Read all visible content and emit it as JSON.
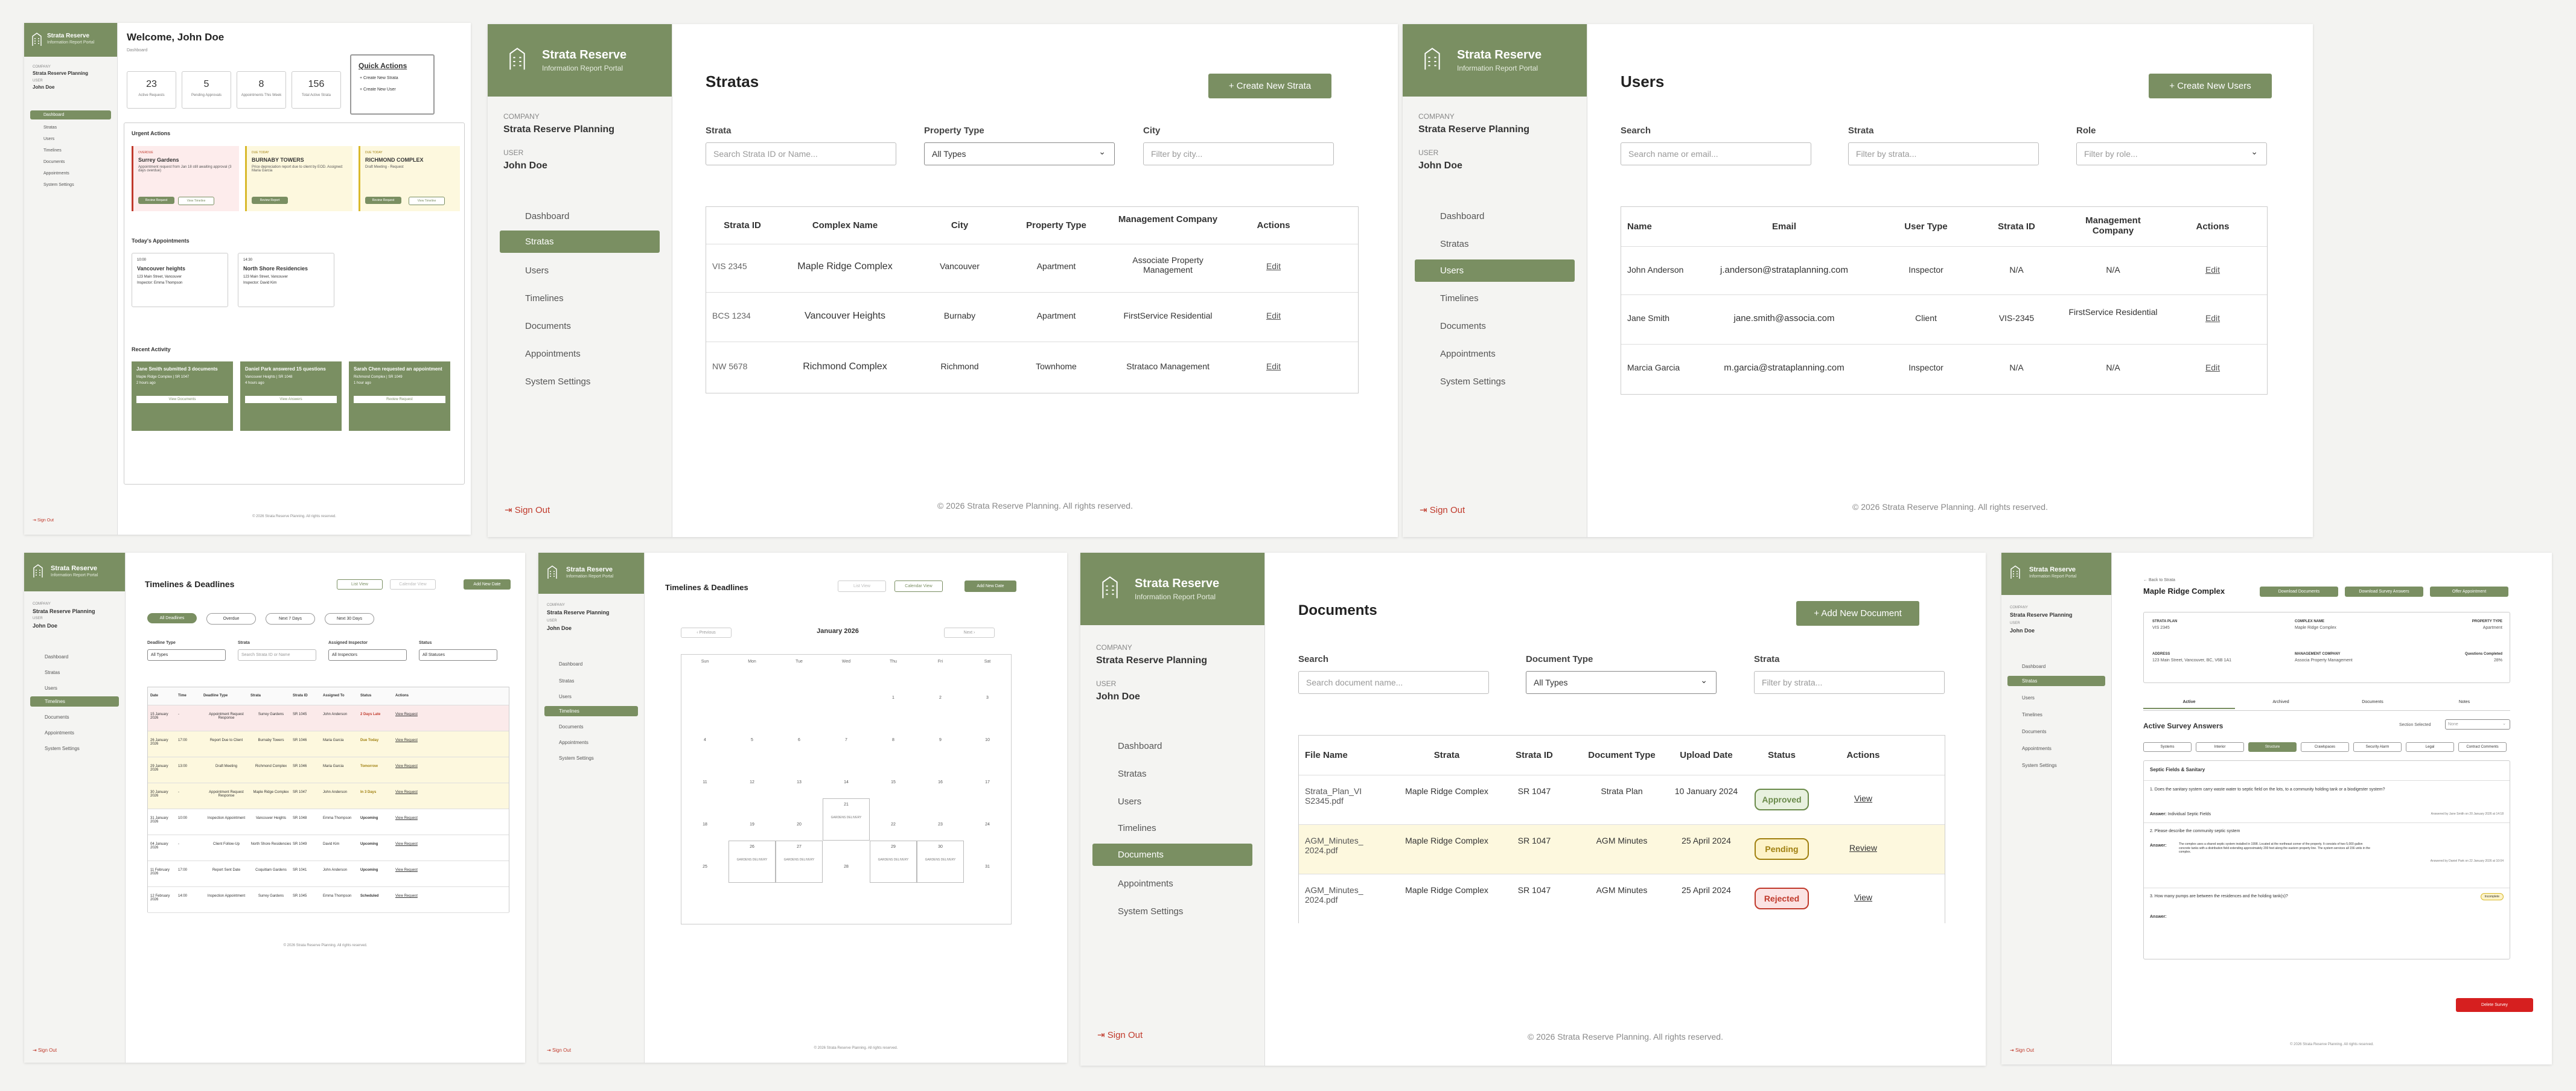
{
  "brand": {
    "name": "Strata Reserve",
    "subtitle": "Information Report Portal"
  },
  "company_label": "COMPANY",
  "company": "Strata Reserve Planning",
  "user_label": "USER",
  "user": "John Doe",
  "nav": [
    "Dashboard",
    "Stratas",
    "Users",
    "Timelines",
    "Documents",
    "Appointments",
    "System Settings"
  ],
  "signout": "Sign Out",
  "footer": "© 2026 Strata Reserve Planning. All rights reserved.",
  "dash": {
    "title": "Welcome, John Doe",
    "crumb": "Dashboard",
    "stats": [
      {
        "n": "23",
        "l": "Active Requests"
      },
      {
        "n": "5",
        "l": "Pending Approvals"
      },
      {
        "n": "8",
        "l": "Appointments This Week"
      },
      {
        "n": "156",
        "l": "Total Active Strata"
      }
    ],
    "qa_title": "Quick Actions",
    "qa": [
      "+ Create New Strata",
      "+ Create New User"
    ],
    "urgent_title": "Urgent Actions",
    "urgent": [
      {
        "tag": "OVERDUE",
        "name": "Surrey Gardens",
        "desc": "Appointment request from Jan 18 still awaiting approval (3 days overdue)",
        "b1": "Review Request",
        "b2": "View Timeline"
      },
      {
        "tag": "DUE TODAY",
        "name": "BURNABY TOWERS",
        "desc": "Price depreciation report due to client by EOD. Assigned: Maria Garcia",
        "b1": "Review Report",
        "b2": "View Timeline"
      },
      {
        "tag": "DUE TODAY",
        "name": "RICHMOND COMPLEX",
        "desc": "Draft Meeting - Request",
        "b1": "Review Request",
        "b2": "View Timeline"
      }
    ],
    "appt_title": "Today's Appointments",
    "appts": [
      {
        "time": "10:00",
        "name": "Vancouver heights",
        "addr": "123 Main Street, Vancouver",
        "insp": "Inspector: Emma Thompson"
      },
      {
        "time": "14:30",
        "name": "North Shore Residencies",
        "addr": "123 Main Street, Vancouver",
        "insp": "Inspector: David Kim"
      }
    ],
    "act_title": "Recent Activity",
    "acts": [
      {
        "t": "Jane Smith submitted 3 documents",
        "s": "Maple Ridge Complex | SR 1047",
        "ago": "2 hours ago",
        "b": "View Documents"
      },
      {
        "t": "Daniel Park answered 15 questions",
        "s": "Vancouver Heights | SR 1048",
        "ago": "4 hours ago",
        "b": "View Answers"
      },
      {
        "t": "Sarah Chen requested an appointment",
        "s": "Richmond Complex | SR 1049",
        "ago": "1 hour ago",
        "b": "Review Request"
      }
    ]
  },
  "stratas": {
    "title": "Stratas",
    "create": "+ Create New Strata",
    "f": [
      {
        "l": "Strata",
        "p": "Search Strata ID or Name..."
      },
      {
        "l": "Property Type",
        "v": "All Types"
      },
      {
        "l": "City",
        "p": "Filter by city..."
      }
    ],
    "cols": [
      "Strata ID",
      "Complex Name",
      "City",
      "Property Type",
      "Management Company",
      "Actions"
    ],
    "rows": [
      [
        "VIS 2345",
        "Maple Ridge Complex",
        "Vancouver",
        "Apartment",
        "Associate Property Management",
        "Edit"
      ],
      [
        "BCS 1234",
        "Vancouver Heights",
        "Burnaby",
        "Apartment",
        "FirstService Residential",
        "Edit"
      ],
      [
        "NW 5678",
        "Richmond Complex",
        "Richmond",
        "Townhome",
        "Strataco Management",
        "Edit"
      ]
    ]
  },
  "users": {
    "title": "Users",
    "create": "+ Create New Users",
    "f": [
      {
        "l": "Search",
        "p": "Search name or email..."
      },
      {
        "l": "Strata",
        "p": "Filter by strata..."
      },
      {
        "l": "Role",
        "p": "Filter by role..."
      }
    ],
    "cols": [
      "Name",
      "Email",
      "User Type",
      "Strata ID",
      "Management Company",
      "Actions"
    ],
    "rows": [
      [
        "John Anderson",
        "j.anderson@strataplanning.com",
        "Inspector",
        "N/A",
        "N/A",
        "Edit"
      ],
      [
        "Jane Smith",
        "jane.smith@associa.com",
        "Client",
        "VIS-2345",
        "FirstService Residential",
        "Edit"
      ],
      [
        "Marcia Garcia",
        "m.garcia@strataplanning.com",
        "Inspector",
        "N/A",
        "N/A",
        "Edit"
      ]
    ]
  },
  "time": {
    "title": "Timelines & Deadlines",
    "views": [
      "List View",
      "Calendar View",
      "Add New Date"
    ],
    "chips": [
      "All Deadlines",
      "Overdue",
      "Next 7 Days",
      "Next 30 Days"
    ],
    "f": [
      {
        "l": "Deadline Type",
        "v": "All Types"
      },
      {
        "l": "Strata",
        "v": "Search Strata ID or Name"
      },
      {
        "l": "Assigned Inspector",
        "v": "All Inspectors"
      },
      {
        "l": "Status",
        "v": "All Statuses"
      }
    ],
    "cols": [
      "Date",
      "Time",
      "Deadline Type",
      "Strata",
      "Strata ID",
      "Assigned To",
      "Status",
      "Actions"
    ],
    "rows": [
      [
        "15 January 2026",
        "-",
        "Appointment Request Response",
        "Surrey Gardens",
        "SR 1045",
        "John Anderson",
        "2 Days Late",
        "View Request"
      ],
      [
        "26 January 2026",
        "17:00",
        "Report Due to Client",
        "Burnaby Towers",
        "SR 1046",
        "Maria Garcia",
        "Due Today",
        "View Request"
      ],
      [
        "29 January 2026",
        "13:00",
        "Draft Meeting",
        "Richmond Complex",
        "SR 1046",
        "Maria Garcia",
        "Tomorrow",
        "View Request"
      ],
      [
        "30 January 2026",
        "-",
        "Appointment Request Response",
        "Maple Ridge Complex",
        "SR 1047",
        "John Anderson",
        "In 3 Days",
        "View Request"
      ],
      [
        "31 January 2026",
        "10:00",
        "Inspection Appointment",
        "Vancouver Heights",
        "SR 1048",
        "Emma Thompson",
        "Upcoming",
        "View Request"
      ],
      [
        "04 January 2026",
        "-",
        "Client Follow-Up",
        "North Shore Residencies",
        "SR 1049",
        "David Kim",
        "Upcoming",
        "View Request"
      ],
      [
        "11 February 2026",
        "17:00",
        "Report Sent Date",
        "Coquitlam Gardens",
        "SR 1041",
        "John Anderson",
        "Upcoming",
        "View Request"
      ],
      [
        "12 February 2026",
        "14:00",
        "Inspection Appointment",
        "Surrey Gardens",
        "SR 1045",
        "Emma Thompson",
        "Scheduled",
        "View Request"
      ]
    ]
  },
  "cal": {
    "month": "January 2026",
    "prev": "‹ Previous",
    "next": "Next ›",
    "days": [
      "Sun",
      "Mon",
      "Tue",
      "Wed",
      "Thu",
      "Fri",
      "Sat"
    ],
    "ev": "GARDENS DELIVERY"
  },
  "docs": {
    "title": "Documents",
    "create": "+ Add New Document",
    "f": [
      {
        "l": "Search",
        "p": "Search document name..."
      },
      {
        "l": "Document Type",
        "v": "All Types"
      },
      {
        "l": "Strata",
        "p": "Filter by strata..."
      }
    ],
    "cols": [
      "File Name",
      "Strata",
      "Strata ID",
      "Document Type",
      "Upload Date",
      "Status",
      "Actions"
    ],
    "rows": [
      [
        "Strata_Plan_VI S2345.pdf",
        "Maple Ridge Complex",
        "SR 1047",
        "Strata Plan",
        "10 January 2024",
        "Approved",
        "View"
      ],
      [
        "AGM_Minutes_ 2024.pdf",
        "Maple Ridge Complex",
        "SR 1047",
        "AGM Minutes",
        "25 April 2024",
        "Pending",
        "Review"
      ],
      [
        "AGM_Minutes_ 2024.pdf",
        "Maple Ridge Complex",
        "SR 1047",
        "AGM Minutes",
        "25 April 2024",
        "Rejected",
        "View"
      ]
    ]
  },
  "survey": {
    "back": "← Back to Strata",
    "name": "Maple Ridge Complex",
    "btns": [
      "Download Documents",
      "Download Survey Answers",
      "Offer Appointment"
    ],
    "info": [
      [
        "STRATA PLAN",
        "VIS 2345"
      ],
      [
        "COMPLEX NAME",
        "Maple Ridge Complex"
      ],
      [
        "PROPERTY TYPE",
        "Apartment"
      ],
      [
        "ADDRESS",
        "123 Main Street, Vancouver, BC, V6B 1A1"
      ],
      [
        "MANAGEMENT COMPANY",
        "Associa Property Management"
      ],
      [
        "Questions Completed",
        "28%"
      ]
    ],
    "tabs": [
      "Active",
      "Archived",
      "Documents",
      "Notes"
    ],
    "sec_title": "Active Survey Answers",
    "sec_sel": "Section Selected",
    "sec_val": "None",
    "chips": [
      "Systems",
      "Interior",
      "Structure",
      "Crawlspaces",
      "Security Alarm",
      "Legal",
      "Contract Comments"
    ],
    "q_section": "Septic Fields & Sanitary",
    "qs": [
      {
        "q": "1. Does the sanitary system carry waste water to septic field on the lots, to a community holding tank or a biodigester system?",
        "a": "Individual Septic Fields",
        "by": "Answered by Jane Smith on 20 January 2026 at 14:18"
      },
      {
        "q": "2. Please describe the community septic system",
        "a": "The complex uses a shared septic system installed in 1998. Located at the northeast corner of the property. It consists of two 5,000 gallon concrete tanks with a distribution field extending approximately 200 feet along the eastern property line. The system services all 156 units in the complex.",
        "by": "Answered by Daniel Park on 22 January 2026 at 10:04"
      },
      {
        "q": "3. How many pumps are between the residences and the holding tank(s)?",
        "a": "",
        "by": "Incomplete"
      }
    ],
    "del": "Delete Survey"
  }
}
